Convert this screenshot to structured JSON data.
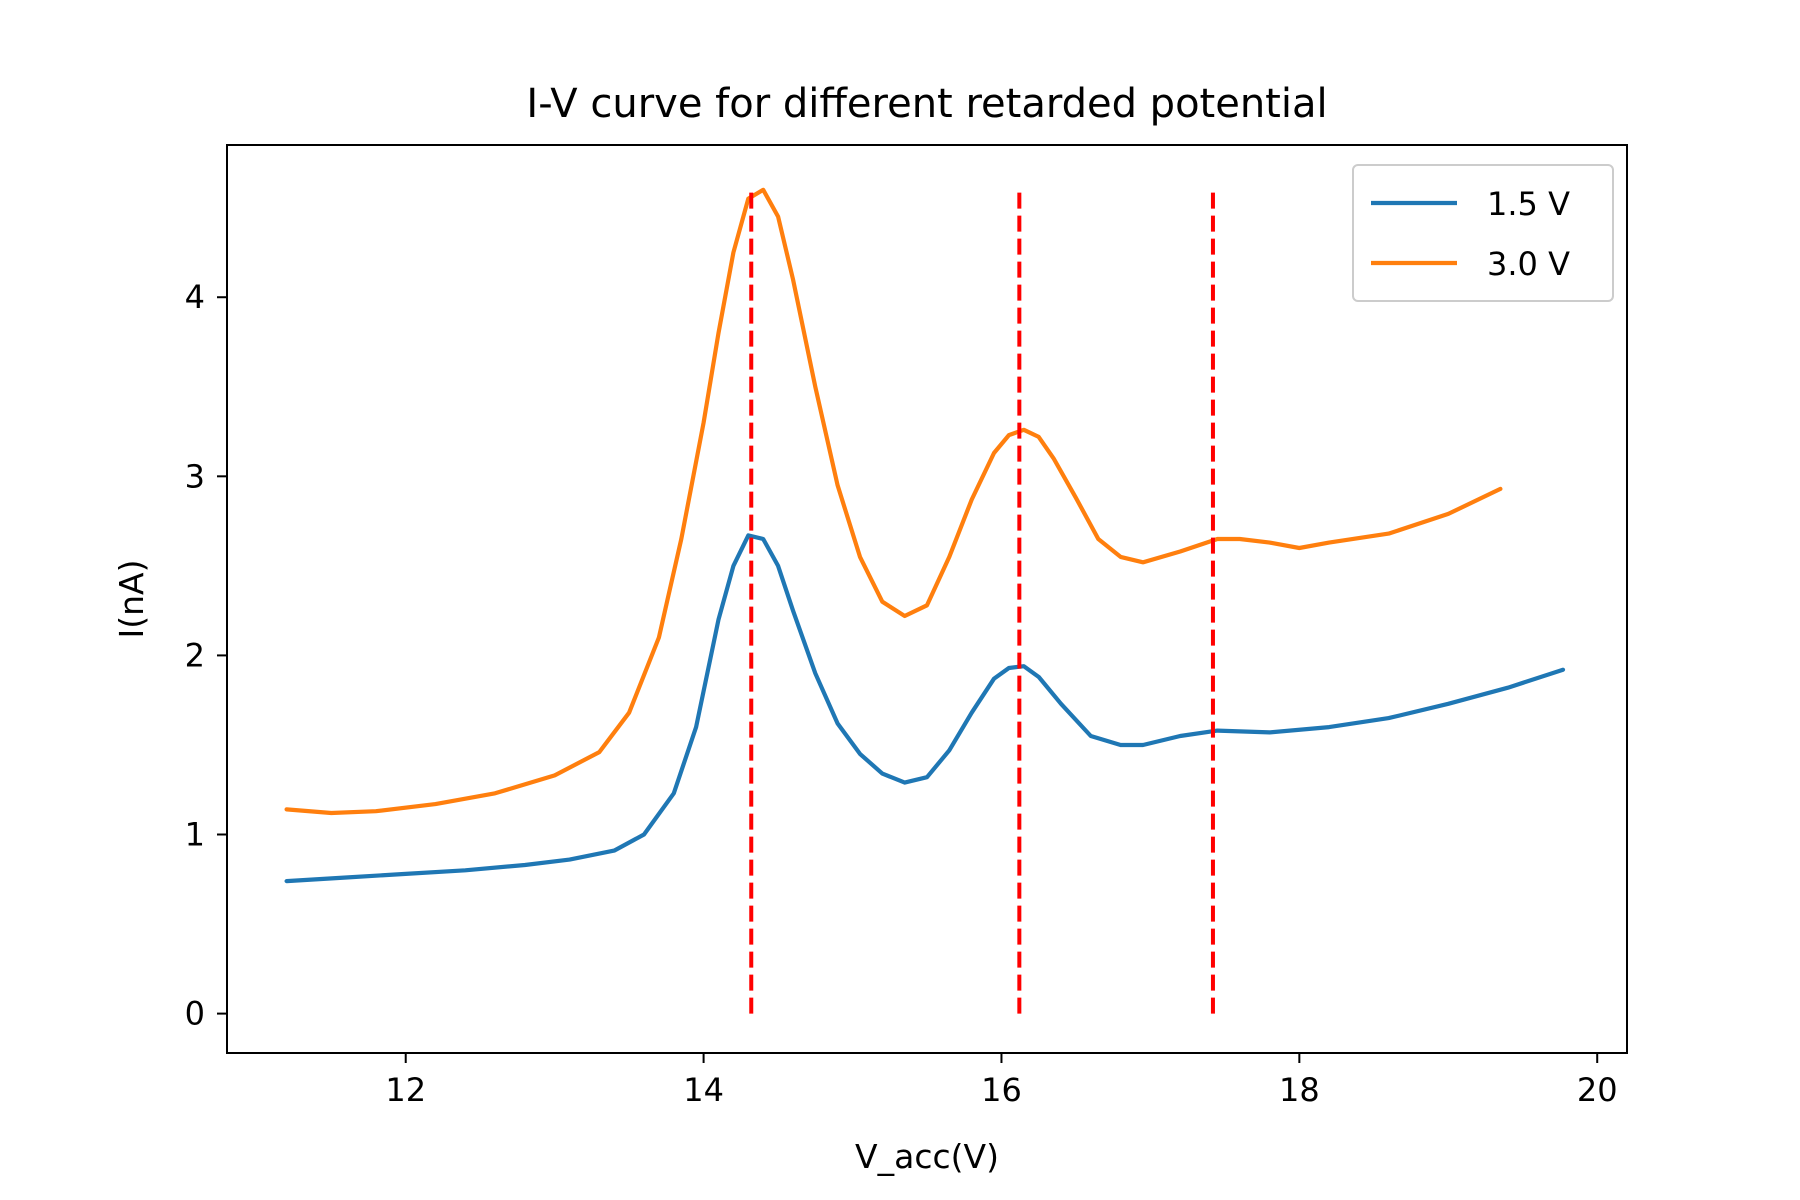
{
  "chart_data": {
    "type": "line",
    "title": "I-V curve for different retarded potential",
    "xlabel": "V_acc(V)",
    "ylabel": "I(nA)",
    "xlim": [
      10.8,
      20.2
    ],
    "ylim": [
      -0.22,
      4.85
    ],
    "xticks": [
      12,
      14,
      16,
      18,
      20
    ],
    "yticks": [
      0,
      1,
      2,
      3,
      4
    ],
    "grid": false,
    "legend_position": "top-right",
    "series": [
      {
        "name": "1.5 V",
        "color": "#1f77b4",
        "x": [
          11.2,
          11.6,
          12.0,
          12.4,
          12.8,
          13.1,
          13.4,
          13.6,
          13.8,
          13.95,
          14.1,
          14.2,
          14.3,
          14.4,
          14.5,
          14.6,
          14.75,
          14.9,
          15.05,
          15.2,
          15.35,
          15.5,
          15.65,
          15.8,
          15.95,
          16.05,
          16.15,
          16.25,
          16.4,
          16.6,
          16.8,
          16.95,
          17.2,
          17.45,
          17.8,
          18.2,
          18.6,
          19.0,
          19.4,
          19.77
        ],
        "y": [
          0.74,
          0.76,
          0.78,
          0.8,
          0.83,
          0.86,
          0.91,
          1.0,
          1.23,
          1.6,
          2.2,
          2.5,
          2.67,
          2.65,
          2.5,
          2.25,
          1.9,
          1.62,
          1.45,
          1.34,
          1.29,
          1.32,
          1.47,
          1.68,
          1.87,
          1.93,
          1.94,
          1.88,
          1.73,
          1.55,
          1.5,
          1.5,
          1.55,
          1.58,
          1.57,
          1.6,
          1.65,
          1.73,
          1.82,
          1.92
        ]
      },
      {
        "name": "3.0 V",
        "color": "#ff7f0e",
        "x": [
          11.2,
          11.5,
          11.8,
          12.2,
          12.6,
          13.0,
          13.3,
          13.5,
          13.7,
          13.85,
          14.0,
          14.1,
          14.2,
          14.3,
          14.4,
          14.5,
          14.6,
          14.75,
          14.9,
          15.05,
          15.2,
          15.35,
          15.5,
          15.65,
          15.8,
          15.95,
          16.05,
          16.15,
          16.25,
          16.35,
          16.5,
          16.65,
          16.8,
          16.95,
          17.2,
          17.45,
          17.6,
          17.8,
          18.0,
          18.2,
          18.6,
          19.0,
          19.35
        ],
        "y": [
          1.14,
          1.12,
          1.13,
          1.17,
          1.23,
          1.33,
          1.46,
          1.68,
          2.1,
          2.65,
          3.3,
          3.8,
          4.25,
          4.55,
          4.6,
          4.45,
          4.1,
          3.5,
          2.95,
          2.55,
          2.3,
          2.22,
          2.28,
          2.55,
          2.87,
          3.13,
          3.23,
          3.26,
          3.22,
          3.1,
          2.88,
          2.65,
          2.55,
          2.52,
          2.58,
          2.65,
          2.65,
          2.63,
          2.6,
          2.63,
          2.68,
          2.79,
          2.93
        ]
      }
    ],
    "vlines": [
      {
        "x": 14.32,
        "ymin": 0,
        "ymax": 4.6,
        "color": "#ff0000",
        "style": "dashed"
      },
      {
        "x": 16.12,
        "ymin": 0,
        "ymax": 4.6,
        "color": "#ff0000",
        "style": "dashed"
      },
      {
        "x": 17.42,
        "ymin": 0,
        "ymax": 4.6,
        "color": "#ff0000",
        "style": "dashed"
      }
    ]
  }
}
